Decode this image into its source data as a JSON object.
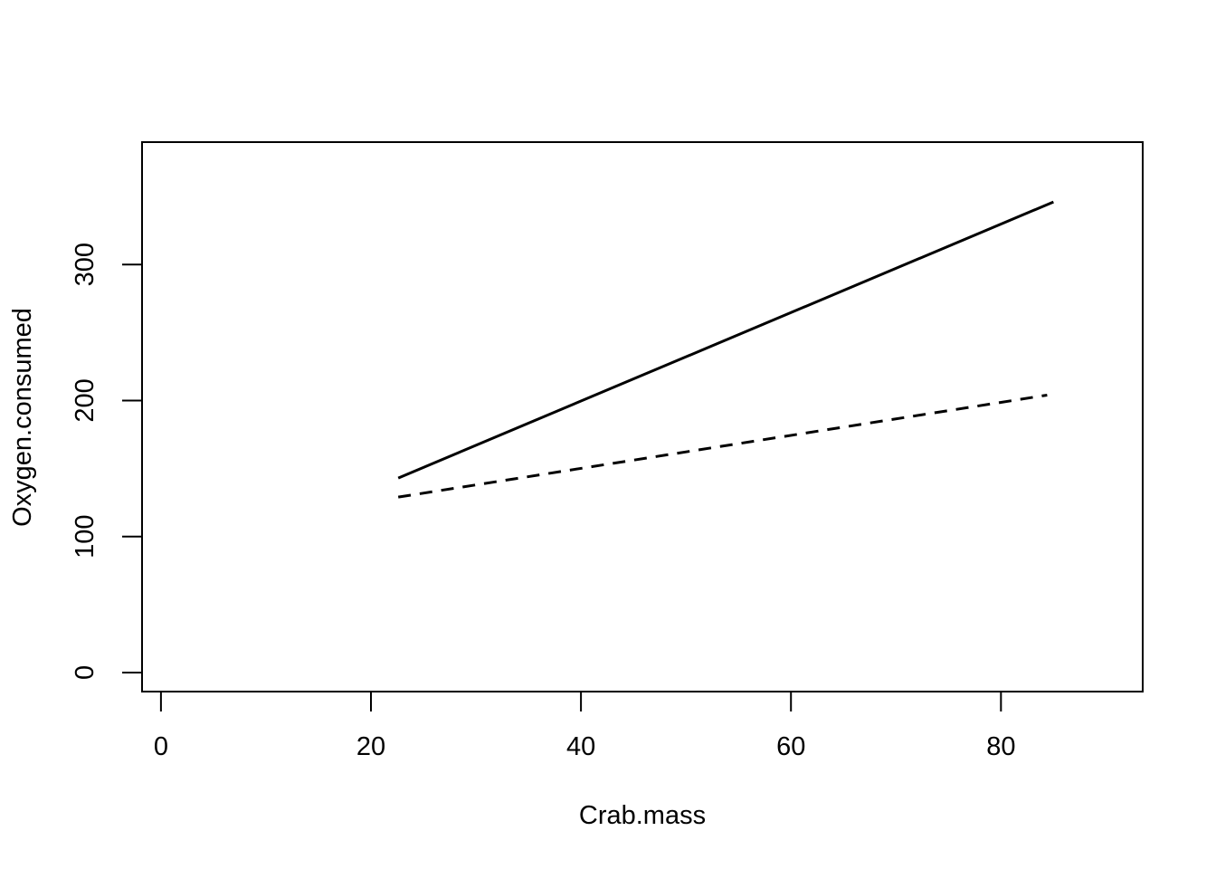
{
  "chart_data": {
    "type": "line",
    "title": "",
    "xlabel": "Crab.mass",
    "ylabel": "Oxygen.consumed",
    "xlim": [
      -1.8,
      93.5
    ],
    "ylim": [
      -14,
      390
    ],
    "x_ticks": [
      0,
      20,
      40,
      60,
      80
    ],
    "x_tick_labels": [
      "0",
      "20",
      "40",
      "60",
      "80"
    ],
    "y_ticks": [
      0,
      100,
      200,
      300
    ],
    "y_tick_labels": [
      "0",
      "100",
      "200",
      "300"
    ],
    "grid": false,
    "legend": "none",
    "series": [
      {
        "style": "solid",
        "color": "#000000",
        "x": [
          22.6,
          85.0
        ],
        "y": [
          143,
          346
        ]
      },
      {
        "style": "dashed",
        "color": "#000000",
        "x": [
          22.6,
          84.4
        ],
        "y": [
          129,
          204
        ]
      }
    ]
  }
}
